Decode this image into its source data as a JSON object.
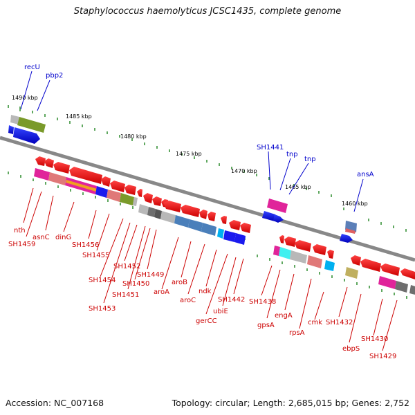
{
  "title": "Staphylococcus haemolyticus JCSC1435, complete genome",
  "footer": {
    "accession": "Accession: NC_007168",
    "topology": "Topology: circular; Length: 2,685,015 bp; Genes: 2,752"
  },
  "scale_labels": [
    "1490 kbp",
    "1485 kbp",
    "1480 kbp",
    "1475 kbp",
    "1470 kbp",
    "1465 kbp",
    "1460 kbp"
  ],
  "gene_labels_above": [
    "recU",
    "pbp2",
    "SH1441",
    "tnp",
    "tnp",
    "ansA"
  ],
  "gene_labels_below": [
    "nth",
    "SH1459",
    "asnC",
    "dinG",
    "SH1456",
    "SH1455",
    "SH1454",
    "SH1453",
    "SH1452",
    "SH1451",
    "SH1450",
    "SH1449",
    "aroA",
    "aroB",
    "aroC",
    "ndk",
    "gerCC",
    "ubiE",
    "SH1442",
    "SH1438",
    "gpsA",
    "engA",
    "rpsA",
    "cmk",
    "SH1432",
    "ebpS",
    "SH1430",
    "SH1429"
  ],
  "colors": {
    "forward_gene": "#0000ee",
    "reverse_gene": "#ee0000",
    "label_forward": "#0000cc",
    "label_reverse": "#cc0000",
    "backbone": "#888888",
    "tick": "#2a8a2a"
  }
}
